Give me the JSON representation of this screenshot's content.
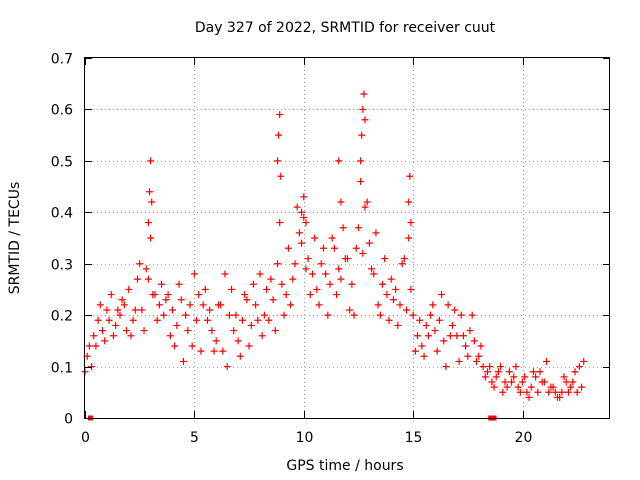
{
  "chart_data": {
    "type": "scatter",
    "title": "Day 327 of 2022, SRMTID for receiver cuut",
    "xlabel": "GPS time / hours",
    "ylabel": "SRMTID / TECUs",
    "xlim": [
      0,
      24
    ],
    "ylim": [
      0,
      0.7
    ],
    "xticks": [
      0,
      5,
      10,
      15,
      20
    ],
    "yticks": [
      0,
      0.1,
      0.2,
      0.3,
      0.4,
      0.5,
      0.6,
      0.7
    ],
    "ytick_labels": [
      "0",
      "0.1",
      "0.2",
      "0.3",
      "0.4",
      "0.5",
      "0.6",
      "0.7"
    ],
    "grid": true,
    "marker": "+",
    "series": [
      {
        "name": "SRMTID",
        "color": "#ff0000",
        "x": [
          0.0,
          0.2,
          0.4,
          0.6,
          0.8,
          1.0,
          1.2,
          1.4,
          1.6,
          1.8,
          2.0,
          2.2,
          2.4,
          2.6,
          2.8,
          3.0,
          3.2,
          3.4,
          3.6,
          3.8,
          4.0,
          4.2,
          4.4,
          4.6,
          4.8,
          5.0,
          5.2,
          5.4,
          5.6,
          5.8,
          6.0,
          6.2,
          6.4,
          6.6,
          6.8,
          7.0,
          7.2,
          7.4,
          7.6,
          7.8,
          8.0,
          8.2,
          8.4,
          8.6,
          8.8,
          9.0,
          9.2,
          9.4,
          9.6,
          9.8,
          10.0,
          10.2,
          10.4,
          10.6,
          10.8,
          11.0,
          11.2,
          11.4,
          11.6,
          11.8,
          12.0,
          12.2,
          12.4,
          12.6,
          12.8,
          13.0,
          13.2,
          13.4,
          13.6,
          13.8,
          14.0,
          14.2,
          14.4,
          14.6,
          14.8,
          15.0,
          15.2,
          15.4,
          15.6,
          15.8,
          16.0,
          16.2,
          16.4,
          16.6,
          16.8,
          17.0,
          17.2,
          17.4,
          17.6,
          17.8,
          18.0,
          18.2,
          18.4,
          18.6,
          18.8,
          19.0,
          19.2,
          19.4,
          19.6,
          19.8,
          20.0,
          20.2,
          20.4,
          20.6,
          20.8,
          21.0,
          21.2,
          21.4,
          21.6,
          21.8,
          22.0,
          22.2,
          22.4,
          22.6,
          22.8,
          0.1,
          0.3,
          0.5,
          0.7,
          0.9,
          1.1,
          1.3,
          1.5,
          1.7,
          1.9,
          2.1,
          2.3,
          2.5,
          2.7,
          2.9,
          3.1,
          3.3,
          3.5,
          3.7,
          3.9,
          4.1,
          4.3,
          4.5,
          4.7,
          4.9,
          5.1,
          5.3,
          5.5,
          5.7,
          5.9,
          6.1,
          6.3,
          6.5,
          6.7,
          6.9,
          7.1,
          7.3,
          7.5,
          7.7,
          7.9,
          8.1,
          8.3,
          8.5,
          8.7,
          8.9,
          9.1,
          9.3,
          9.5,
          9.7,
          9.9,
          10.1,
          10.3,
          10.5,
          10.7,
          10.9,
          11.1,
          11.3,
          11.5,
          11.7,
          11.9,
          12.1,
          12.3,
          12.5,
          12.7,
          12.9,
          13.1,
          13.3,
          13.5,
          13.7,
          13.9,
          14.1,
          14.3,
          14.5,
          14.7,
          14.9,
          15.1,
          15.3,
          15.5,
          15.7,
          15.9,
          16.1,
          16.3,
          16.5,
          16.7,
          16.9,
          17.1,
          17.3,
          17.5,
          17.7,
          17.9,
          18.1,
          18.3,
          18.5,
          18.7,
          18.9,
          19.1,
          19.3,
          19.5,
          19.7,
          19.9,
          20.1,
          20.3,
          20.5,
          20.7,
          20.9,
          21.1,
          21.3,
          21.5,
          21.7,
          21.9,
          22.1,
          22.3,
          22.5,
          22.7,
          2.9,
          2.95,
          3.0,
          3.05,
          8.8,
          8.85,
          8.9,
          8.95,
          12.6,
          12.65,
          12.7,
          12.75,
          12.8,
          14.8,
          14.85,
          14.9,
          9.9,
          10.0,
          10.1,
          11.6,
          11.7
        ],
        "y": [
          0.09,
          0.14,
          0.16,
          0.19,
          0.17,
          0.21,
          0.24,
          0.18,
          0.2,
          0.22,
          0.25,
          0.19,
          0.27,
          0.21,
          0.29,
          0.35,
          0.24,
          0.22,
          0.2,
          0.24,
          0.21,
          0.18,
          0.23,
          0.2,
          0.22,
          0.28,
          0.24,
          0.22,
          0.19,
          0.17,
          0.15,
          0.22,
          0.28,
          0.2,
          0.17,
          0.15,
          0.19,
          0.23,
          0.18,
          0.22,
          0.28,
          0.2,
          0.19,
          0.23,
          0.3,
          0.26,
          0.24,
          0.22,
          0.3,
          0.36,
          0.39,
          0.31,
          0.28,
          0.25,
          0.3,
          0.28,
          0.26,
          0.33,
          0.29,
          0.37,
          0.31,
          0.26,
          0.33,
          0.46,
          0.41,
          0.34,
          0.28,
          0.22,
          0.26,
          0.24,
          0.27,
          0.25,
          0.22,
          0.31,
          0.35,
          0.2,
          0.16,
          0.14,
          0.18,
          0.2,
          0.17,
          0.19,
          0.15,
          0.22,
          0.18,
          0.16,
          0.2,
          0.14,
          0.17,
          0.15,
          0.12,
          0.1,
          0.09,
          0.07,
          0.08,
          0.1,
          0.07,
          0.09,
          0.08,
          0.06,
          0.07,
          0.05,
          0.06,
          0.08,
          0.09,
          0.07,
          0.05,
          0.06,
          0.04,
          0.05,
          0.07,
          0.06,
          0.09,
          0.1,
          0.11,
          0.12,
          0.1,
          0.14,
          0.22,
          0.15,
          0.19,
          0.16,
          0.21,
          0.23,
          0.17,
          0.16,
          0.21,
          0.3,
          0.17,
          0.27,
          0.24,
          0.19,
          0.26,
          0.23,
          0.16,
          0.14,
          0.26,
          0.11,
          0.17,
          0.14,
          0.19,
          0.13,
          0.25,
          0.21,
          0.13,
          0.22,
          0.13,
          0.1,
          0.25,
          0.2,
          0.12,
          0.24,
          0.14,
          0.26,
          0.19,
          0.16,
          0.25,
          0.27,
          0.17,
          0.38,
          0.2,
          0.33,
          0.27,
          0.41,
          0.34,
          0.29,
          0.24,
          0.35,
          0.22,
          0.33,
          0.2,
          0.35,
          0.24,
          0.27,
          0.31,
          0.21,
          0.2,
          0.37,
          0.32,
          0.42,
          0.29,
          0.36,
          0.2,
          0.31,
          0.19,
          0.23,
          0.18,
          0.3,
          0.21,
          0.25,
          0.13,
          0.19,
          0.12,
          0.16,
          0.22,
          0.13,
          0.24,
          0.1,
          0.16,
          0.21,
          0.11,
          0.16,
          0.12,
          0.2,
          0.11,
          0.14,
          0.08,
          0.1,
          0.06,
          0.09,
          0.05,
          0.06,
          0.07,
          0.1,
          0.05,
          0.08,
          0.04,
          0.09,
          0.05,
          0.07,
          0.11,
          0.06,
          0.05,
          0.04,
          0.08,
          0.05,
          0.07,
          0.05,
          0.06,
          0.38,
          0.44,
          0.5,
          0.42,
          0.5,
          0.55,
          0.59,
          0.47,
          0.5,
          0.55,
          0.6,
          0.63,
          0.58,
          0.42,
          0.47,
          0.38,
          0.4,
          0.43,
          0.38,
          0.5,
          0.42
        ],
        "extra_markers": [
          {
            "x": 0.25,
            "y": 0.0
          },
          {
            "x": 18.55,
            "y": 0.0
          },
          {
            "x": 18.7,
            "y": 0.0
          }
        ]
      }
    ]
  }
}
